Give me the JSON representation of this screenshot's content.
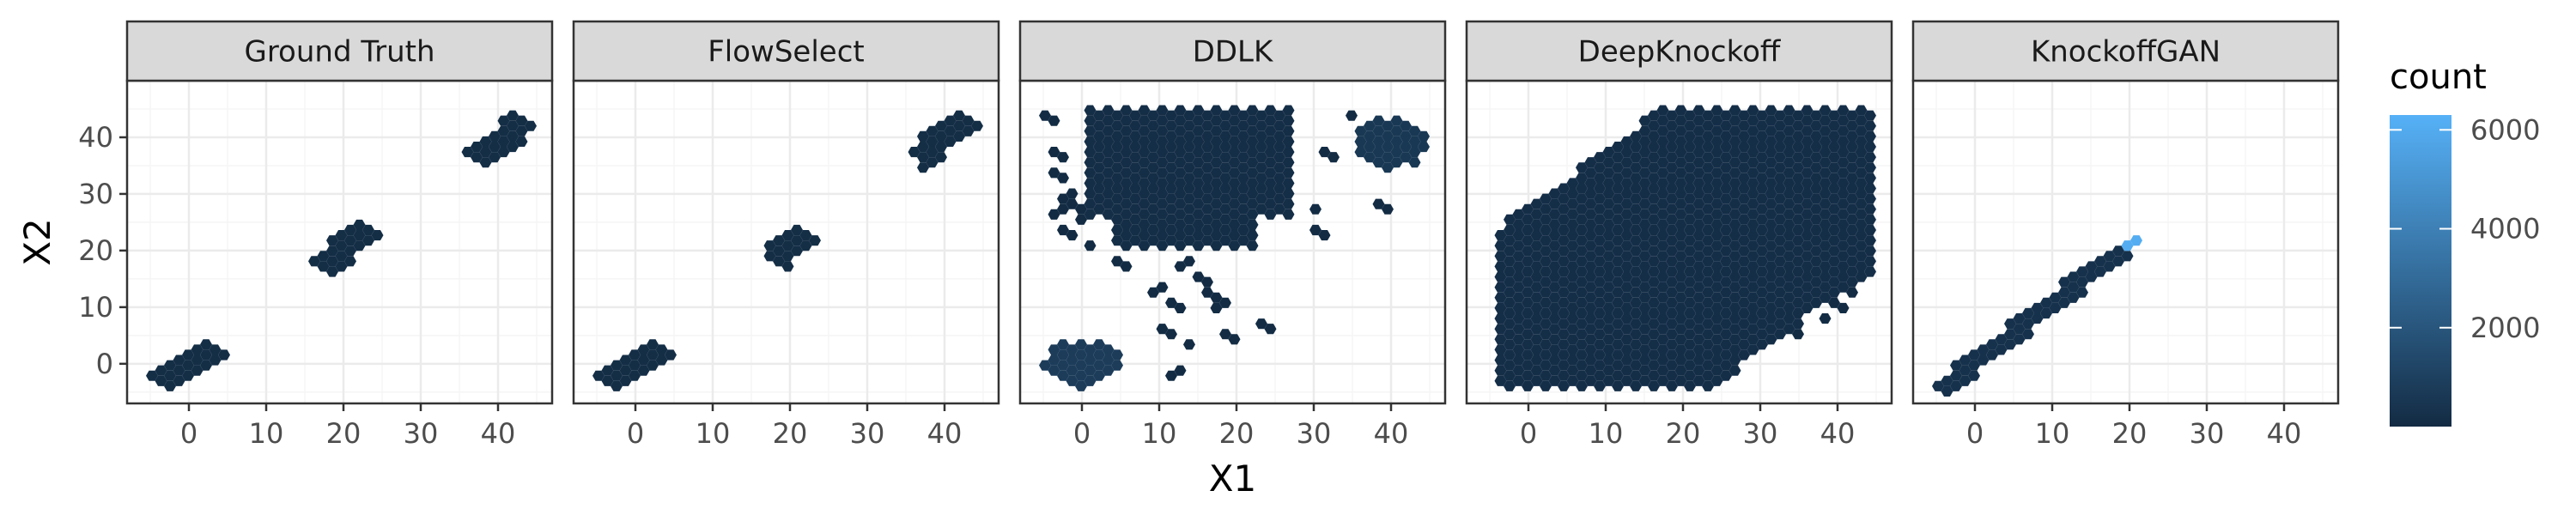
{
  "chart_data": {
    "type": "hexbin",
    "xlabel": "X1",
    "ylabel": "X2",
    "xlim": [
      -8,
      47
    ],
    "ylim": [
      -7,
      50
    ],
    "x_ticks": [
      0,
      10,
      20,
      30,
      40
    ],
    "y_ticks": [
      0,
      10,
      20,
      30,
      40
    ],
    "grid": true,
    "legend": {
      "title": "count",
      "position": "right",
      "range": [
        0,
        6300
      ],
      "ticks": [
        2000,
        4000,
        6000
      ],
      "tick_labels": [
        "2000",
        "4000",
        "6000"
      ]
    },
    "colors": {
      "low": "#132b43",
      "high": "#56b1f7",
      "strip_background": "#d9d9d9",
      "panel_border": "#333333",
      "grid_major": "#ebebeb",
      "grid_minor": "#f5f5f5"
    },
    "panels": [
      {
        "title": "Ground Truth",
        "regions": [
          {
            "shape": "diagonal",
            "from": [
              -3.5,
              -3.5
            ],
            "to": [
              3.5,
              3
            ],
            "width": 2.2,
            "count": 120
          },
          {
            "shape": "diagonal",
            "from": [
              16.5,
              17
            ],
            "to": [
              24,
              24
            ],
            "width": 2.2,
            "count": 120
          },
          {
            "shape": "diagonal",
            "from": [
              36.5,
              36
            ],
            "to": [
              44,
              43
            ],
            "width": 2.2,
            "count": 120
          }
        ]
      },
      {
        "title": "FlowSelect",
        "regions": [
          {
            "shape": "diagonal",
            "from": [
              -3.5,
              -3.5
            ],
            "to": [
              3.5,
              3
            ],
            "width": 2.2,
            "count": 120
          },
          {
            "shape": "diagonal",
            "from": [
              17.5,
              18
            ],
            "to": [
              23,
              23
            ],
            "width": 2.2,
            "count": 120
          },
          {
            "shape": "diagonal",
            "from": [
              36,
              36
            ],
            "to": [
              43,
              43
            ],
            "width": 2.2,
            "count": 120
          }
        ]
      },
      {
        "title": "DDLK",
        "regions": [
          {
            "shape": "box",
            "x": [
              1,
              27
            ],
            "y": [
              26,
              45
            ],
            "count": 150
          },
          {
            "shape": "box",
            "x": [
              4,
              23
            ],
            "y": [
              20,
              30
            ],
            "count": 130
          },
          {
            "shape": "ellipse",
            "center": [
              40,
              39
            ],
            "radius": [
              5,
              4.5
            ],
            "count": 600
          },
          {
            "shape": "ellipse",
            "center": [
              0,
              0
            ],
            "radius": [
              5,
              4
            ],
            "count": 800
          },
          {
            "shape": "points",
            "pts": [
              [
                -4,
                43
              ],
              [
                -3,
                37
              ],
              [
                -3,
                33
              ],
              [
                -2,
                30
              ],
              [
                -1,
                28
              ],
              [
                -3,
                27
              ],
              [
                0,
                25
              ],
              [
                -2,
                23
              ],
              [
                1,
                20
              ],
              [
                5,
                18
              ],
              [
                8,
                20
              ],
              [
                13,
                18
              ],
              [
                15,
                16
              ],
              [
                16,
                14
              ],
              [
                17,
                12
              ],
              [
                18,
                10
              ],
              [
                10,
                13
              ],
              [
                12,
                10
              ],
              [
                11,
                6
              ],
              [
                14,
                3
              ],
              [
                19,
                5
              ],
              [
                24,
                7
              ],
              [
                12,
                -2
              ],
              [
                31,
                23
              ],
              [
                32,
                37
              ],
              [
                39,
                28
              ],
              [
                30,
                27
              ],
              [
                35,
                44
              ]
            ],
            "count": 40
          }
        ]
      },
      {
        "title": "DeepKnockoff",
        "regions": [
          {
            "shape": "upper",
            "x": [
              -4,
              45
            ],
            "y": [
              -4,
              45
            ],
            "band": 28,
            "count": 160
          },
          {
            "shape": "points",
            "pts": [
              [
                -3,
                22
              ],
              [
                -2,
                25
              ],
              [
                0,
                27
              ],
              [
                2,
                29
              ],
              [
                6,
                31
              ],
              [
                10,
                33
              ],
              [
                13,
                35
              ],
              [
                16,
                38
              ],
              [
                18,
                40
              ],
              [
                20,
                42
              ],
              [
                44,
                16
              ],
              [
                42,
                12
              ],
              [
                40,
                10
              ],
              [
                38,
                8
              ],
              [
                35,
                6
              ],
              [
                32,
                5
              ],
              [
                28,
                3
              ],
              [
                26,
                1
              ],
              [
                24,
                -1
              ],
              [
                20,
                -1
              ],
              [
                22,
                0
              ]
            ],
            "count": 40
          }
        ]
      },
      {
        "title": "KnockoffGAN",
        "regions": [
          {
            "shape": "diagonal",
            "from": [
              -4,
              -4
            ],
            "to": [
              19,
              20
            ],
            "width": 1.6,
            "count": 300
          },
          {
            "shape": "points",
            "pts": [
              [
                20,
                21
              ]
            ],
            "count": 6100
          }
        ]
      }
    ]
  }
}
